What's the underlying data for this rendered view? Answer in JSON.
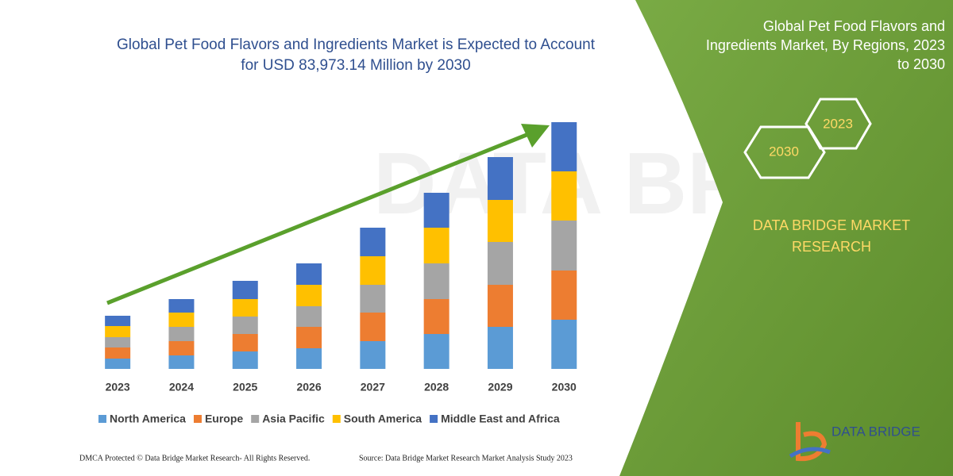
{
  "chart_data": {
    "type": "stacked-bar",
    "title": [
      "Global Pet Food Flavors and Ingredients Market is Expected to Account",
      "for USD 83,973.14 Million by 2030"
    ],
    "categories": [
      "2023",
      "2024",
      "2025",
      "2026",
      "2027",
      "2028",
      "2029",
      "2030"
    ],
    "series": [
      {
        "name": "North America",
        "color": "#5b9bd5",
        "values": [
          13,
          17,
          22,
          26,
          35,
          44,
          53,
          62
        ]
      },
      {
        "name": "Europe",
        "color": "#ed7d31",
        "values": [
          14,
          18,
          22,
          27,
          36,
          44,
          53,
          62
        ]
      },
      {
        "name": "Asia Pacific",
        "color": "#a5a5a5",
        "values": [
          13,
          18,
          22,
          26,
          35,
          45,
          54,
          63
        ]
      },
      {
        "name": "South America",
        "color": "#ffc000",
        "values": [
          14,
          18,
          22,
          27,
          36,
          45,
          53,
          62
        ]
      },
      {
        "name": "Middle East and Africa",
        "color": "#4472c4",
        "values": [
          13,
          17,
          23,
          27,
          36,
          44,
          54,
          62
        ]
      }
    ],
    "legend": "bottom"
  },
  "panel": {
    "title": [
      "Global Pet Food Flavors and",
      "Ingredients Market, By Regions, 2023",
      "to 2030"
    ],
    "hexagons": [
      "2023",
      "2030"
    ],
    "brand": [
      "DATA BRIDGE MARKET",
      "RESEARCH"
    ],
    "logo": "DATA BRIDGE"
  },
  "footer": {
    "left": "DMCA Protected © Data Bridge Market Research-  All Rights Reserved.",
    "right": "Source: Data Bridge Market Research  Market Analysis Study 2023"
  }
}
